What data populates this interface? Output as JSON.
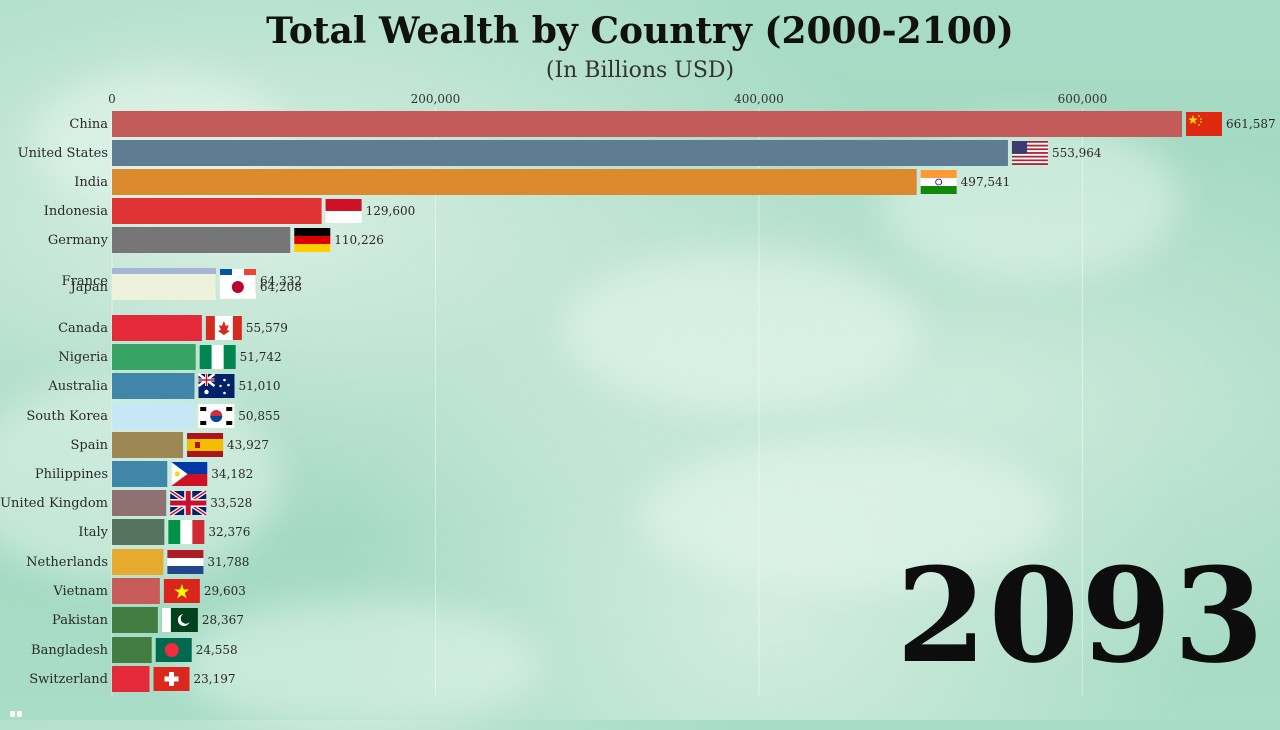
{
  "header": {
    "title": "Total Wealth by Country (2000-2100)",
    "subtitle": "(In Billions USD)"
  },
  "year": "2093",
  "chart_data": {
    "type": "bar",
    "orientation": "horizontal",
    "title": "Total Wealth by Country (2000-2100)",
    "subtitle": "(In Billions USD)",
    "xlim": [
      0,
      661587
    ],
    "x_ticks": [
      0,
      200000,
      400000,
      600000
    ],
    "x_tick_labels": [
      "0",
      "200,000",
      "400,000",
      "600,000"
    ],
    "grid": true,
    "bars": [
      {
        "name": "China",
        "value": 661587,
        "label": "661,587",
        "color": "#c45b5b",
        "flag": "china"
      },
      {
        "name": "United States",
        "value": 553964,
        "label": "553,964",
        "color": "#5e7c92",
        "flag": "usa"
      },
      {
        "name": "India",
        "value": 497541,
        "label": "497,541",
        "color": "#db8a2e",
        "flag": "india"
      },
      {
        "name": "Indonesia",
        "value": 129600,
        "label": "129,600",
        "color": "#e03334",
        "flag": "indonesia"
      },
      {
        "name": "Germany",
        "value": 110226,
        "label": "110,226",
        "color": "#767676",
        "flag": "germany"
      },
      {
        "name": "France",
        "value": 64332,
        "label": "64,332",
        "color": "#a6b5d3",
        "flag": "france"
      },
      {
        "name": "Japan",
        "value": 64208,
        "label": "64,208",
        "color": "#eef2dd",
        "flag": "japan"
      },
      {
        "name": "Canada",
        "value": 55579,
        "label": "55,579",
        "color": "#e3293a",
        "flag": "canada"
      },
      {
        "name": "Nigeria",
        "value": 51742,
        "label": "51,742",
        "color": "#37a365",
        "flag": "nigeria"
      },
      {
        "name": "Australia",
        "value": 51010,
        "label": "51,010",
        "color": "#3f86a9",
        "flag": "australia"
      },
      {
        "name": "South Korea",
        "value": 50855,
        "label": "50,855",
        "color": "#c6e7f6",
        "flag": "southkorea"
      },
      {
        "name": "Spain",
        "value": 43927,
        "label": "43,927",
        "color": "#9d8853",
        "flag": "spain"
      },
      {
        "name": "Philippines",
        "value": 34182,
        "label": "34,182",
        "color": "#3f86a9",
        "flag": "philippines"
      },
      {
        "name": "United Kingdom",
        "value": 33528,
        "label": "33,528",
        "color": "#8e7170",
        "flag": "uk"
      },
      {
        "name": "Italy",
        "value": 32376,
        "label": "32,376",
        "color": "#55735f",
        "flag": "italy"
      },
      {
        "name": "Netherlands",
        "value": 31788,
        "label": "31,788",
        "color": "#e6ab2e",
        "flag": "netherlands"
      },
      {
        "name": "Vietnam",
        "value": 29603,
        "label": "29,603",
        "color": "#c65b58",
        "flag": "vietnam"
      },
      {
        "name": "Pakistan",
        "value": 28367,
        "label": "28,367",
        "color": "#427d42",
        "flag": "pakistan"
      },
      {
        "name": "Bangladesh",
        "value": 24558,
        "label": "24,558",
        "color": "#427d42",
        "flag": "bangladesh"
      },
      {
        "name": "Switzerland",
        "value": 23197,
        "label": "23,197",
        "color": "#e3293a",
        "flag": "switzerland"
      }
    ]
  }
}
